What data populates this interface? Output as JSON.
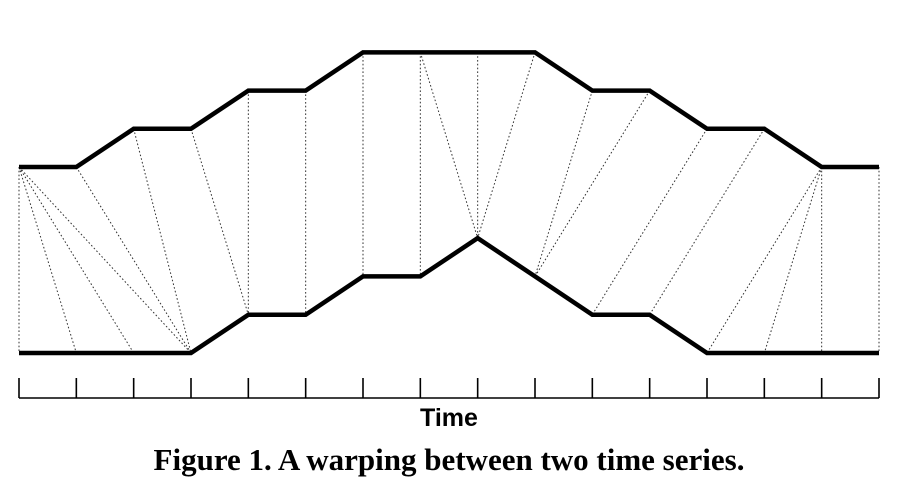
{
  "figure": {
    "caption": "Figure 1. A warping between two time series.",
    "xlabel": "Time",
    "colors": {
      "series": "#000000",
      "warp_path": "#333333",
      "background": "#ffffff"
    }
  },
  "chart_data": {
    "type": "line",
    "title": "",
    "xlabel": "Time",
    "ylabel": "",
    "grid": false,
    "x": [
      0,
      1,
      2,
      3,
      4,
      5,
      6,
      7,
      8,
      9,
      10,
      11,
      12,
      13,
      14,
      15
    ],
    "series": [
      {
        "values": [
          2,
          2,
          3,
          3,
          4,
          4,
          5,
          5,
          5,
          5,
          4,
          4,
          3,
          3,
          2,
          2
        ]
      },
      {
        "values": [
          0,
          0,
          0,
          0,
          1,
          1,
          2,
          2,
          3,
          2,
          1,
          1,
          0,
          0,
          0,
          0
        ]
      }
    ],
    "warping_path": [
      [
        0,
        0
      ],
      [
        0,
        1
      ],
      [
        0,
        2
      ],
      [
        0,
        3
      ],
      [
        1,
        3
      ],
      [
        2,
        3
      ],
      [
        3,
        4
      ],
      [
        4,
        4
      ],
      [
        5,
        5
      ],
      [
        6,
        6
      ],
      [
        7,
        7
      ],
      [
        7,
        8
      ],
      [
        8,
        8
      ],
      [
        9,
        8
      ],
      [
        10,
        9
      ],
      [
        11,
        9
      ],
      [
        12,
        10
      ],
      [
        13,
        11
      ],
      [
        14,
        12
      ],
      [
        14,
        13
      ],
      [
        14,
        14
      ],
      [
        15,
        15
      ]
    ]
  }
}
